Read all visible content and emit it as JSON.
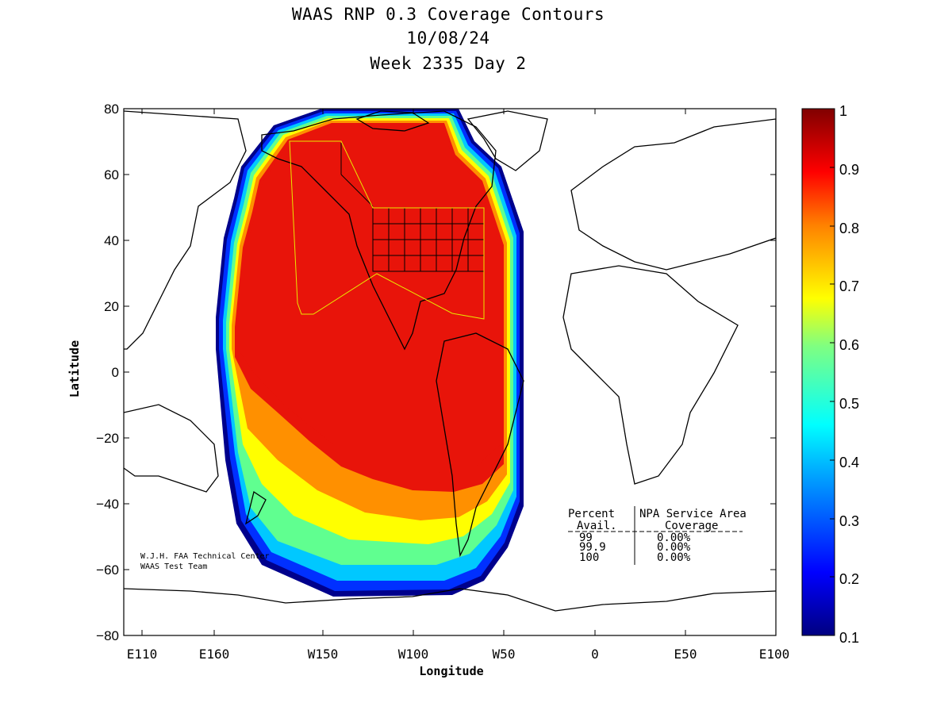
{
  "title": {
    "line1": "WAAS RNP 0.3 Coverage Contours",
    "line2": "10/08/24",
    "line3": "Week 2335 Day 2"
  },
  "axes": {
    "xlabel": "Longitude",
    "ylabel": "Latitude",
    "x_ticks": [
      "E110",
      "E160",
      "W150",
      "W100",
      "W50",
      "0",
      "E50",
      "E100"
    ],
    "y_ticks": [
      "80",
      "60",
      "40",
      "20",
      "0",
      "−20",
      "−40",
      "−60",
      "−80"
    ]
  },
  "colorbar": {
    "ticks": [
      "1",
      "0.9",
      "0.8",
      "0.7",
      "0.6",
      "0.5",
      "0.4",
      "0.3",
      "0.2",
      "0.1"
    ],
    "min": 0.1,
    "max": 1,
    "colormap": "jet"
  },
  "credit": {
    "line1": "W.J.H. FAA Technical Center",
    "line2": "WAAS Test Team"
  },
  "stats_table": {
    "header1": "Percent",
    "header2": "NPA Service Area",
    "subheader1": "Avail.",
    "subheader2": "Coverage",
    "rows": [
      {
        "avail": "99",
        "coverage": "0.00%"
      },
      {
        "avail": "99.9",
        "coverage": "0.00%"
      },
      {
        "avail": "100",
        "coverage": "0.00%"
      }
    ]
  },
  "colors": {
    "service_area_outline": "#e8e800",
    "coastline": "#000000",
    "high_coverage": "#e8140a"
  }
}
